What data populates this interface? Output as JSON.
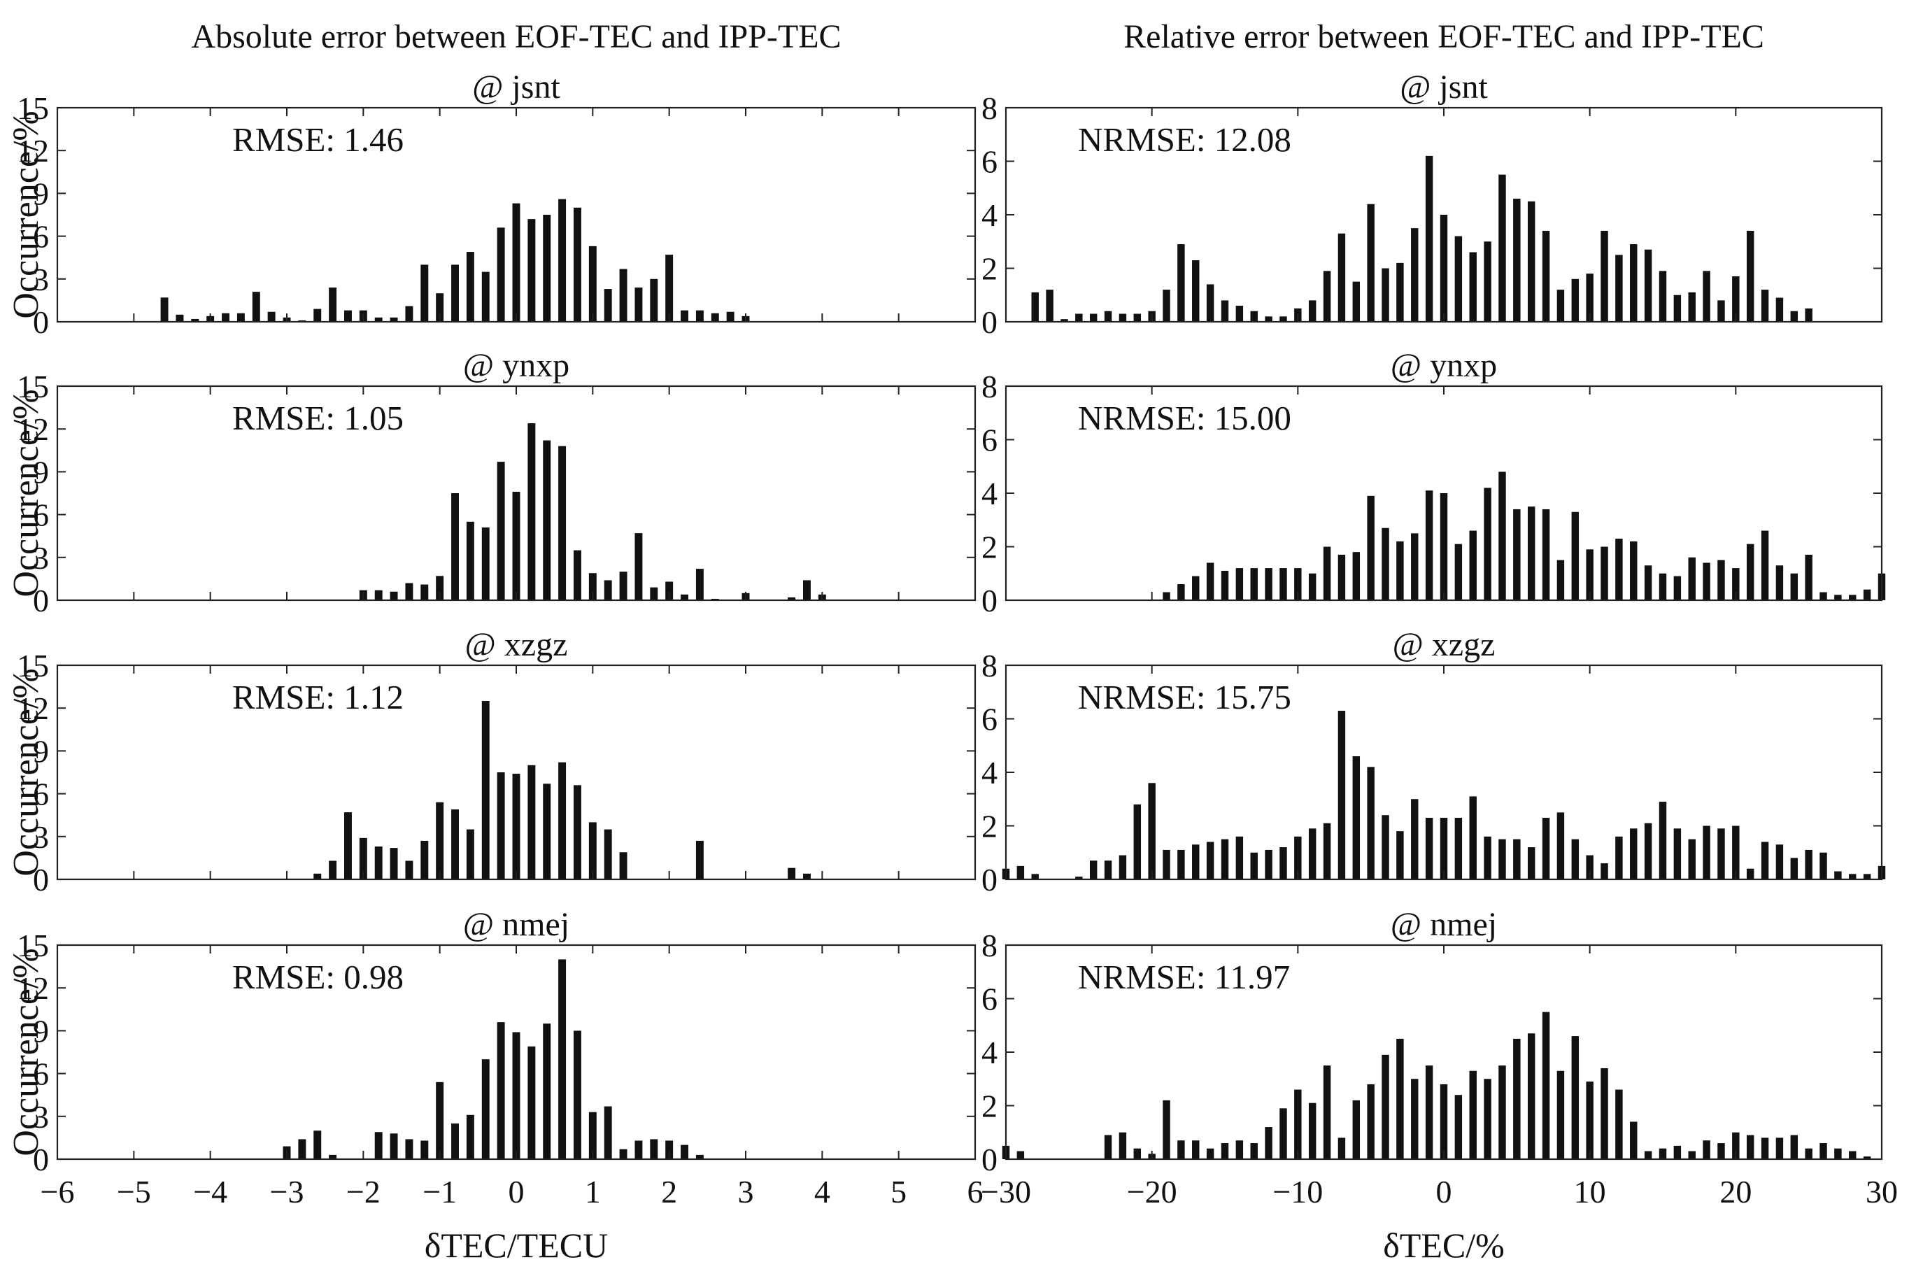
{
  "chart_data": [
    {
      "type": "bar",
      "column_title": "Absolute error between EOF-TEC and IPP-TEC",
      "subtitle": "@ jsnt",
      "annotation": "RMSE: 1.46",
      "ylabel": "Occurrence/%",
      "xlabel": "",
      "xlim": [
        -6,
        6
      ],
      "ylim": [
        0,
        15
      ],
      "xticks": [
        -6,
        -5,
        -4,
        -3,
        -2,
        -1,
        0,
        1,
        2,
        3,
        4,
        5,
        6
      ],
      "xtick_labels": [
        "−6",
        "−5",
        "−4",
        "−3",
        "−2",
        "−1",
        "0",
        "1",
        "2",
        "3",
        "4",
        "5",
        "6"
      ],
      "yticks": [
        0,
        3,
        6,
        9,
        12,
        15
      ],
      "ytick_labels": [
        "0",
        "3",
        "6",
        "9",
        "12",
        "15"
      ],
      "bar_width": 0.1,
      "x": [
        -4.6,
        -4.4,
        -4.2,
        -4.0,
        -3.8,
        -3.6,
        -3.4,
        -3.2,
        -3.0,
        -2.8,
        -2.6,
        -2.4,
        -2.2,
        -2.0,
        -1.8,
        -1.6,
        -1.4,
        -1.2,
        -1.0,
        -0.8,
        -0.6,
        -0.4,
        -0.2,
        0.0,
        0.2,
        0.4,
        0.6,
        0.8,
        1.0,
        1.2,
        1.4,
        1.6,
        1.8,
        2.0,
        2.2,
        2.4,
        2.6,
        2.8,
        3.0
      ],
      "values": [
        1.7,
        0.5,
        0.2,
        0.4,
        0.6,
        0.6,
        2.1,
        0.7,
        0.3,
        0.1,
        0.9,
        2.4,
        0.8,
        0.8,
        0.3,
        0.3,
        1.1,
        4.0,
        2.0,
        4.0,
        4.9,
        3.5,
        6.6,
        8.3,
        7.2,
        7.5,
        8.6,
        8.0,
        5.3,
        2.3,
        3.7,
        2.4,
        3.0,
        4.7,
        0.8,
        0.8,
        0.6,
        0.7,
        0.4
      ]
    },
    {
      "type": "bar",
      "subtitle": "@ ynxp",
      "annotation": "RMSE: 1.05",
      "ylabel": "Occurrence/%",
      "xlabel": "",
      "xlim": [
        -6,
        6
      ],
      "ylim": [
        0,
        15
      ],
      "xticks": [
        -6,
        -5,
        -4,
        -3,
        -2,
        -1,
        0,
        1,
        2,
        3,
        4,
        5,
        6
      ],
      "xtick_labels": [
        "−6",
        "−5",
        "−4",
        "−3",
        "−2",
        "−1",
        "0",
        "1",
        "2",
        "3",
        "4",
        "5",
        "6"
      ],
      "yticks": [
        0,
        3,
        6,
        9,
        12,
        15
      ],
      "ytick_labels": [
        "0",
        "3",
        "6",
        "9",
        "12",
        "15"
      ],
      "bar_width": 0.1,
      "x": [
        -2.0,
        -1.8,
        -1.6,
        -1.4,
        -1.2,
        -1.0,
        -0.8,
        -0.6,
        -0.4,
        -0.2,
        0.0,
        0.2,
        0.4,
        0.6,
        0.8,
        1.0,
        1.2,
        1.4,
        1.6,
        1.8,
        2.0,
        2.2,
        2.4,
        2.6,
        3.0,
        3.6,
        3.8,
        4.0
      ],
      "values": [
        0.7,
        0.7,
        0.6,
        1.2,
        1.1,
        1.7,
        7.5,
        5.5,
        5.1,
        9.7,
        7.6,
        12.4,
        11.2,
        10.8,
        3.5,
        1.9,
        1.4,
        2.0,
        4.7,
        0.9,
        1.3,
        0.4,
        2.2,
        0.1,
        0.5,
        0.2,
        1.4,
        0.4
      ]
    },
    {
      "type": "bar",
      "subtitle": "@ xzgz",
      "annotation": "RMSE: 1.12",
      "ylabel": "Occurrence/%",
      "xlabel": "",
      "xlim": [
        -6,
        6
      ],
      "ylim": [
        0,
        15
      ],
      "xticks": [
        -6,
        -5,
        -4,
        -3,
        -2,
        -1,
        0,
        1,
        2,
        3,
        4,
        5,
        6
      ],
      "xtick_labels": [
        "−6",
        "−5",
        "−4",
        "−3",
        "−2",
        "−1",
        "0",
        "1",
        "2",
        "3",
        "4",
        "5",
        "6"
      ],
      "yticks": [
        0,
        3,
        6,
        9,
        12,
        15
      ],
      "ytick_labels": [
        "0",
        "3",
        "6",
        "9",
        "12",
        "15"
      ],
      "bar_width": 0.1,
      "x": [
        -2.6,
        -2.4,
        -2.2,
        -2.0,
        -1.8,
        -1.6,
        -1.4,
        -1.2,
        -1.0,
        -0.8,
        -0.6,
        -0.4,
        -0.2,
        0.0,
        0.2,
        0.4,
        0.6,
        0.8,
        1.0,
        1.2,
        1.4,
        2.4,
        3.6,
        3.8
      ],
      "values": [
        0.4,
        1.3,
        4.7,
        2.9,
        2.3,
        2.2,
        1.3,
        2.7,
        5.4,
        4.9,
        3.5,
        12.5,
        7.5,
        7.4,
        8.0,
        6.7,
        8.2,
        6.6,
        4.0,
        3.5,
        1.9,
        2.7,
        0.8,
        0.4
      ]
    },
    {
      "type": "bar",
      "subtitle": "@ nmej",
      "annotation": "RMSE: 0.98",
      "ylabel": "Occurrence/%",
      "xlabel": "δTEC/TECU",
      "xlim": [
        -6,
        6
      ],
      "ylim": [
        0,
        15
      ],
      "xticks": [
        -6,
        -5,
        -4,
        -3,
        -2,
        -1,
        0,
        1,
        2,
        3,
        4,
        5,
        6
      ],
      "xtick_labels": [
        "−6",
        "−5",
        "−4",
        "−3",
        "−2",
        "−1",
        "0",
        "1",
        "2",
        "3",
        "4",
        "5",
        "6"
      ],
      "yticks": [
        0,
        3,
        6,
        9,
        12,
        15
      ],
      "ytick_labels": [
        "0",
        "3",
        "6",
        "9",
        "12",
        "15"
      ],
      "bar_width": 0.1,
      "x": [
        -3.0,
        -2.8,
        -2.6,
        -2.4,
        -1.8,
        -1.6,
        -1.4,
        -1.2,
        -1.0,
        -0.8,
        -0.6,
        -0.4,
        -0.2,
        0.0,
        0.2,
        0.4,
        0.6,
        0.8,
        1.0,
        1.2,
        1.4,
        1.6,
        1.8,
        2.0,
        2.2,
        2.4
      ],
      "values": [
        0.9,
        1.4,
        2.0,
        0.3,
        1.9,
        1.8,
        1.4,
        1.3,
        5.4,
        2.5,
        3.1,
        7.0,
        9.6,
        8.9,
        7.9,
        9.5,
        14.0,
        9.0,
        3.3,
        3.7,
        0.7,
        1.3,
        1.4,
        1.3,
        1.0,
        0.3
      ]
    },
    {
      "type": "bar",
      "column_title": "Relative error between EOF-TEC and IPP-TEC",
      "subtitle": "@ jsnt",
      "annotation": "NRMSE: 12.08",
      "ylabel": "",
      "xlabel": "",
      "xlim": [
        -30,
        30
      ],
      "ylim": [
        0,
        8
      ],
      "xticks": [
        -30,
        -20,
        -10,
        0,
        10,
        20,
        30
      ],
      "xtick_labels": [
        "−30",
        "−20",
        "−10",
        "0",
        "10",
        "20",
        "30"
      ],
      "yticks": [
        0,
        2,
        4,
        6,
        8
      ],
      "ytick_labels": [
        "0",
        "2",
        "4",
        "6",
        "8"
      ],
      "bar_width": 0.5,
      "x": [
        -28,
        -27,
        -26,
        -25,
        -24,
        -23,
        -22,
        -21,
        -20,
        -19,
        -18,
        -17,
        -16,
        -15,
        -14,
        -13,
        -12,
        -11,
        -10,
        -9,
        -8,
        -7,
        -6,
        -5,
        -4,
        -3,
        -2,
        -1,
        0,
        1,
        2,
        3,
        4,
        5,
        6,
        7,
        8,
        9,
        10,
        11,
        12,
        13,
        14,
        15,
        16,
        17,
        18,
        19,
        20,
        21,
        22,
        23,
        24,
        25
      ],
      "values": [
        1.1,
        1.2,
        0.1,
        0.3,
        0.3,
        0.4,
        0.3,
        0.3,
        0.4,
        1.2,
        2.9,
        2.3,
        1.4,
        0.8,
        0.6,
        0.4,
        0.2,
        0.2,
        0.5,
        0.8,
        1.9,
        3.3,
        1.5,
        4.4,
        2.0,
        2.2,
        3.5,
        6.2,
        4.0,
        3.2,
        2.6,
        3.0,
        5.5,
        4.6,
        4.5,
        3.4,
        1.2,
        1.6,
        1.8,
        3.4,
        2.5,
        2.9,
        2.7,
        1.9,
        1.0,
        1.1,
        1.9,
        0.8,
        1.7,
        3.4,
        1.2,
        0.9,
        0.4,
        0.5
      ]
    },
    {
      "type": "bar",
      "subtitle": "@ ynxp",
      "annotation": "NRMSE: 15.00",
      "ylabel": "",
      "xlabel": "",
      "xlim": [
        -30,
        30
      ],
      "ylim": [
        0,
        8
      ],
      "xticks": [
        -30,
        -20,
        -10,
        0,
        10,
        20,
        30
      ],
      "xtick_labels": [
        "−30",
        "−20",
        "−10",
        "0",
        "10",
        "20",
        "30"
      ],
      "yticks": [
        0,
        2,
        4,
        6,
        8
      ],
      "ytick_labels": [
        "0",
        "2",
        "4",
        "6",
        "8"
      ],
      "bar_width": 0.5,
      "x": [
        -19,
        -18,
        -17,
        -16,
        -15,
        -14,
        -13,
        -12,
        -11,
        -10,
        -9,
        -8,
        -7,
        -6,
        -5,
        -4,
        -3,
        -2,
        -1,
        0,
        1,
        2,
        3,
        4,
        5,
        6,
        7,
        8,
        9,
        10,
        11,
        12,
        13,
        14,
        15,
        16,
        17,
        18,
        19,
        20,
        21,
        22,
        23,
        24,
        25,
        26,
        27,
        28,
        29,
        30
      ],
      "values": [
        0.3,
        0.6,
        0.9,
        1.4,
        1.1,
        1.2,
        1.2,
        1.2,
        1.2,
        1.2,
        1.0,
        2.0,
        1.7,
        1.8,
        3.9,
        2.7,
        2.2,
        2.5,
        4.1,
        4.0,
        2.1,
        2.6,
        4.2,
        4.8,
        3.4,
        3.5,
        3.4,
        1.5,
        3.3,
        1.9,
        2.0,
        2.3,
        2.2,
        1.3,
        1.0,
        0.9,
        1.6,
        1.4,
        1.5,
        1.2,
        2.1,
        2.6,
        1.3,
        1.0,
        1.7,
        0.3,
        0.2,
        0.2,
        0.4,
        1.0
      ]
    },
    {
      "type": "bar",
      "subtitle": "@ xzgz",
      "annotation": "NRMSE: 15.75",
      "ylabel": "",
      "xlabel": "",
      "xlim": [
        -30,
        30
      ],
      "ylim": [
        0,
        8
      ],
      "xticks": [
        -30,
        -20,
        -10,
        0,
        10,
        20,
        30
      ],
      "xtick_labels": [
        "−30",
        "−20",
        "−10",
        "0",
        "10",
        "20",
        "30"
      ],
      "yticks": [
        0,
        2,
        4,
        6,
        8
      ],
      "ytick_labels": [
        "0",
        "2",
        "4",
        "6",
        "8"
      ],
      "bar_width": 0.5,
      "x": [
        -30,
        -29,
        -28,
        -25,
        -24,
        -23,
        -22,
        -21,
        -20,
        -19,
        -18,
        -17,
        -16,
        -15,
        -14,
        -13,
        -12,
        -11,
        -10,
        -9,
        -8,
        -7,
        -6,
        -5,
        -4,
        -3,
        -2,
        -1,
        0,
        1,
        2,
        3,
        4,
        5,
        6,
        7,
        8,
        9,
        10,
        11,
        12,
        13,
        14,
        15,
        16,
        17,
        18,
        19,
        20,
        21,
        22,
        23,
        24,
        25,
        26,
        27,
        28,
        29,
        30
      ],
      "values": [
        0.4,
        0.5,
        0.2,
        0.1,
        0.7,
        0.7,
        0.9,
        2.8,
        3.6,
        1.1,
        1.1,
        1.3,
        1.4,
        1.5,
        1.6,
        1.0,
        1.1,
        1.2,
        1.6,
        1.9,
        2.1,
        6.3,
        4.6,
        4.2,
        2.4,
        1.8,
        3.0,
        2.3,
        2.3,
        2.3,
        3.1,
        1.6,
        1.5,
        1.5,
        1.2,
        2.3,
        2.5,
        1.5,
        0.9,
        0.6,
        1.6,
        1.9,
        2.1,
        2.9,
        1.9,
        1.5,
        2.0,
        1.9,
        2.0,
        0.4,
        1.4,
        1.3,
        0.8,
        1.1,
        1.0,
        0.3,
        0.2,
        0.2,
        0.5
      ]
    },
    {
      "type": "bar",
      "subtitle": "@ nmej",
      "annotation": "NRMSE: 11.97",
      "ylabel": "",
      "xlabel": "δTEC/%",
      "xlim": [
        -30,
        30
      ],
      "ylim": [
        0,
        8
      ],
      "xticks": [
        -30,
        -20,
        -10,
        0,
        10,
        20,
        30
      ],
      "xtick_labels": [
        "−30",
        "−20",
        "−10",
        "0",
        "10",
        "20",
        "30"
      ],
      "yticks": [
        0,
        2,
        4,
        6,
        8
      ],
      "ytick_labels": [
        "0",
        "2",
        "4",
        "6",
        "8"
      ],
      "bar_width": 0.5,
      "x": [
        -30,
        -29,
        -23,
        -22,
        -21,
        -20,
        -19,
        -18,
        -17,
        -16,
        -15,
        -14,
        -13,
        -12,
        -11,
        -10,
        -9,
        -8,
        -7,
        -6,
        -5,
        -4,
        -3,
        -2,
        -1,
        0,
        1,
        2,
        3,
        4,
        5,
        6,
        7,
        8,
        9,
        10,
        11,
        12,
        13,
        14,
        15,
        16,
        17,
        18,
        19,
        20,
        21,
        22,
        23,
        24,
        25,
        26,
        27,
        28,
        29
      ],
      "values": [
        0.5,
        0.3,
        0.9,
        1.0,
        0.4,
        0.2,
        2.2,
        0.7,
        0.7,
        0.4,
        0.6,
        0.7,
        0.6,
        1.2,
        1.9,
        2.6,
        2.1,
        3.5,
        0.8,
        2.2,
        2.8,
        3.9,
        4.5,
        3.0,
        3.5,
        2.8,
        2.4,
        3.3,
        3.0,
        3.5,
        4.5,
        4.7,
        5.5,
        3.3,
        4.6,
        2.9,
        3.4,
        2.6,
        1.4,
        0.3,
        0.4,
        0.5,
        0.3,
        0.7,
        0.6,
        1.0,
        0.9,
        0.8,
        0.8,
        0.9,
        0.4,
        0.6,
        0.4,
        0.3,
        0.1
      ]
    }
  ]
}
